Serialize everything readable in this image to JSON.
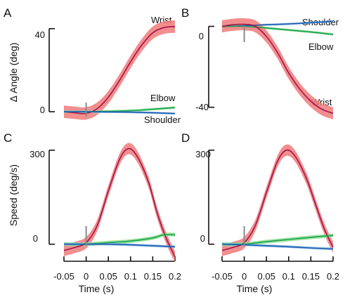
{
  "figure": {
    "ylabel_top": "Δ Angle (deg)",
    "ylabel_bottom": "Speed (deg/s)",
    "xlabel": "Time (s)",
    "xticks": [
      "-0.05",
      "0",
      "0.05",
      "0.1",
      "0.15",
      "0.2"
    ],
    "colors": {
      "wrist": "#a0144a",
      "wrist_band": "#f07a7a",
      "elbow": "#16a05a",
      "elbow_band": "#8fe08a",
      "shoulder": "#1f5fb0",
      "shoulder_band": "#7fb3e0",
      "onset_marker": "#8a8a8a"
    }
  },
  "chart_data": [
    {
      "panel": "A",
      "type": "line",
      "ylabel": "Δ Angle (deg)",
      "yticks": [
        "40",
        "0"
      ],
      "ylim": [
        -2,
        45
      ],
      "xlim": [
        -0.06,
        0.2
      ],
      "series": [
        {
          "name": "Wrist",
          "x": [
            -0.05,
            -0.025,
            0,
            0.025,
            0.05,
            0.075,
            0.1,
            0.125,
            0.15,
            0.175,
            0.2
          ],
          "y": [
            0,
            -0.5,
            -0.8,
            1.5,
            7,
            15,
            24,
            32,
            38,
            40.5,
            41
          ],
          "band": 3
        },
        {
          "name": "Elbow",
          "x": [
            -0.05,
            0,
            0.05,
            0.1,
            0.15,
            0.2
          ],
          "y": [
            0,
            0,
            0.2,
            0.5,
            1.2,
            2
          ],
          "band": 0.6
        },
        {
          "name": "Shoulder",
          "x": [
            -0.05,
            0,
            0.05,
            0.1,
            0.15,
            0.2
          ],
          "y": [
            0,
            0,
            -0.1,
            -0.2,
            -0.5,
            -0.9
          ],
          "band": 0.5
        }
      ]
    },
    {
      "panel": "B",
      "type": "line",
      "yticks": [
        "0",
        "-40"
      ],
      "ylim": [
        -46,
        4
      ],
      "xlim": [
        -0.06,
        0.2
      ],
      "series": [
        {
          "name": "Shoulder",
          "x": [
            -0.05,
            0,
            0.05,
            0.1,
            0.15,
            0.2
          ],
          "y": [
            0,
            0.3,
            0.8,
            1.2,
            1.8,
            2.5
          ],
          "band": 0.5
        },
        {
          "name": "Elbow",
          "x": [
            -0.05,
            0,
            0.05,
            0.1,
            0.15,
            0.2
          ],
          "y": [
            0,
            0,
            -0.8,
            -1.8,
            -2.8,
            -4
          ],
          "band": 0.6
        },
        {
          "name": "Wrist",
          "x": [
            -0.05,
            -0.025,
            0,
            0.025,
            0.05,
            0.075,
            0.1,
            0.125,
            0.15,
            0.175,
            0.2
          ],
          "y": [
            0,
            0.8,
            1,
            0,
            -5,
            -13,
            -23,
            -31,
            -37,
            -41,
            -43
          ],
          "band": 3
        }
      ]
    },
    {
      "panel": "C",
      "type": "line",
      "ylabel": "Speed (deg/s)",
      "yticks": [
        "300",
        "0"
      ],
      "ylim": [
        -50,
        340
      ],
      "xlim": [
        -0.06,
        0.2
      ],
      "xticks": [
        "-0.05",
        "0",
        "0.05",
        "0.1",
        "0.15",
        "0.2"
      ],
      "xlabel": "Time (s)",
      "series": [
        {
          "name": "Wrist",
          "x": [
            -0.05,
            -0.025,
            0,
            0.025,
            0.05,
            0.075,
            0.095,
            0.115,
            0.14,
            0.16,
            0.18,
            0.2
          ],
          "y": [
            -20,
            -10,
            5,
            60,
            170,
            270,
            305,
            280,
            200,
            100,
            20,
            -40
          ],
          "band": 18
        },
        {
          "name": "Elbow",
          "x": [
            -0.05,
            0,
            0.05,
            0.1,
            0.15,
            0.175,
            0.2
          ],
          "y": [
            0,
            0,
            5,
            10,
            20,
            30,
            30
          ],
          "band": 6
        },
        {
          "name": "Shoulder",
          "x": [
            -0.05,
            0,
            0.05,
            0.1,
            0.15,
            0.2
          ],
          "y": [
            0,
            0,
            0,
            -2,
            -5,
            -8
          ],
          "band": 4
        }
      ]
    },
    {
      "panel": "D",
      "type": "line",
      "yticks": [
        "300",
        "0"
      ],
      "ylim": [
        -50,
        340
      ],
      "xlim": [
        -0.06,
        0.2
      ],
      "xticks": [
        "-0.05",
        "0",
        "0.05",
        "0.1",
        "0.15",
        "0.2"
      ],
      "xlabel": "Time (s)",
      "series": [
        {
          "name": "Wrist",
          "x": [
            -0.05,
            -0.025,
            0,
            0.025,
            0.05,
            0.075,
            0.095,
            0.115,
            0.14,
            0.16,
            0.18,
            0.2
          ],
          "y": [
            -20,
            -10,
            5,
            60,
            165,
            265,
            300,
            280,
            210,
            130,
            50,
            -10
          ],
          "band": 18
        },
        {
          "name": "Elbow",
          "x": [
            -0.05,
            0,
            0.05,
            0.1,
            0.15,
            0.2
          ],
          "y": [
            0,
            0,
            8,
            15,
            22,
            28
          ],
          "band": 6
        },
        {
          "name": "Shoulder",
          "x": [
            -0.05,
            0,
            0.05,
            0.1,
            0.15,
            0.2
          ],
          "y": [
            0,
            -2,
            -5,
            -8,
            -12,
            -15
          ],
          "band": 4
        }
      ]
    }
  ],
  "labels": {
    "A": {
      "wrist": "Wrist",
      "elbow": "Elbow",
      "shoulder": "Shoulder"
    },
    "B": {
      "shoulder": "Shoulder",
      "elbow": "Elbow",
      "wrist": "Wrist"
    }
  }
}
